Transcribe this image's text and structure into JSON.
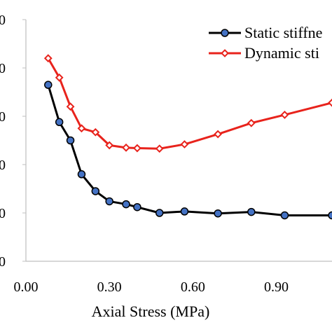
{
  "chart_data": {
    "type": "line",
    "title": "",
    "xlabel": "Axial Stress (MPa)",
    "ylabel": "",
    "xlim": [
      0.0,
      1.1
    ],
    "ylim": [
      0,
      5
    ],
    "x_ticks": [
      "0.00",
      "0.30",
      "0.60",
      "0.90"
    ],
    "x_tick_values": [
      0.0,
      0.3,
      0.6,
      0.9
    ],
    "y_tick_values": [
      0,
      1,
      2,
      3,
      4,
      5
    ],
    "y_tick_labels": [
      "0",
      "0",
      "0",
      "0",
      "0",
      "0"
    ],
    "grid": false,
    "legend": "top-right",
    "series": [
      {
        "name": "Static stiffne",
        "color": "#000000",
        "marker": "circle",
        "marker_color": "#4472C4",
        "x": [
          0.08,
          0.12,
          0.16,
          0.2,
          0.25,
          0.3,
          0.36,
          0.4,
          0.48,
          0.57,
          0.69,
          0.81,
          0.93,
          1.1
        ],
        "y": [
          3.65,
          2.88,
          2.5,
          1.8,
          1.45,
          1.24,
          1.18,
          1.12,
          1.0,
          1.03,
          0.99,
          1.02,
          0.95,
          0.95
        ]
      },
      {
        "name": "Dynamic sti",
        "color": "#E8231C",
        "marker": "diamond",
        "marker_color": "#E8231C",
        "x": [
          0.08,
          0.12,
          0.16,
          0.2,
          0.25,
          0.3,
          0.36,
          0.4,
          0.48,
          0.57,
          0.69,
          0.81,
          0.93,
          1.1
        ],
        "y": [
          4.2,
          3.8,
          3.2,
          2.75,
          2.67,
          2.4,
          2.35,
          2.34,
          2.33,
          2.42,
          2.63,
          2.86,
          3.03,
          3.28
        ]
      }
    ]
  }
}
